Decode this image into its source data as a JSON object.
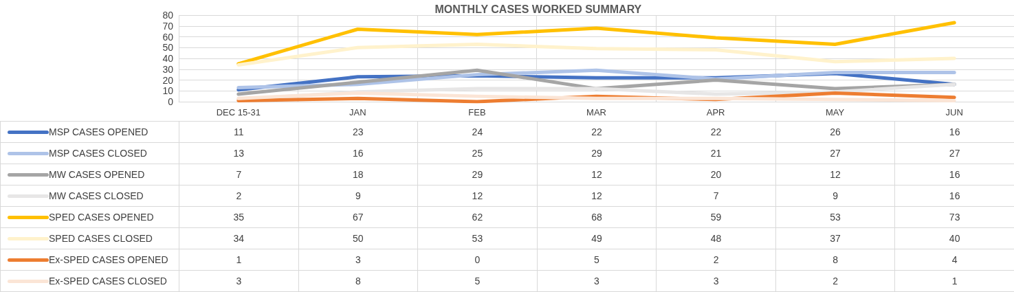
{
  "chart_data": {
    "type": "line",
    "title": "MONTHLY CASES WORKED SUMMARY",
    "categories": [
      "DEC 15-31",
      "JAN",
      "FEB",
      "MAR",
      "APR",
      "MAY",
      "JUN"
    ],
    "series": [
      {
        "name": "MSP CASES OPENED",
        "color": "#4472c4",
        "values": [
          11,
          23,
          24,
          22,
          22,
          26,
          16
        ]
      },
      {
        "name": "MSP CASES CLOSED",
        "color": "#aec3e8",
        "values": [
          13,
          16,
          25,
          29,
          21,
          27,
          27
        ]
      },
      {
        "name": "MW CASES OPENED",
        "color": "#a5a5a5",
        "values": [
          7,
          18,
          29,
          12,
          20,
          12,
          16
        ]
      },
      {
        "name": "MW CASES CLOSED",
        "color": "#e7e6e6",
        "values": [
          2,
          9,
          12,
          12,
          7,
          9,
          16
        ]
      },
      {
        "name": "SPED CASES OPENED",
        "color": "#ffc000",
        "values": [
          35,
          67,
          62,
          68,
          59,
          53,
          73
        ]
      },
      {
        "name": "SPED CASES CLOSED",
        "color": "#fff2cc",
        "values": [
          34,
          50,
          53,
          49,
          48,
          37,
          40
        ]
      },
      {
        "name": "Ex-SPED CASES OPENED",
        "color": "#ed7d31",
        "values": [
          1,
          3,
          0,
          5,
          2,
          8,
          4
        ]
      },
      {
        "name": "Ex-SPED CASES CLOSED",
        "color": "#fbe5d6",
        "values": [
          3,
          8,
          5,
          3,
          3,
          2,
          1
        ]
      }
    ],
    "ylim": [
      0,
      80
    ],
    "yticks": [
      0,
      10,
      20,
      30,
      40,
      50,
      60,
      70,
      80
    ],
    "grid": true,
    "legend": "bottom left",
    "data_labels": true,
    "marker": "none",
    "line_style": "solid"
  }
}
